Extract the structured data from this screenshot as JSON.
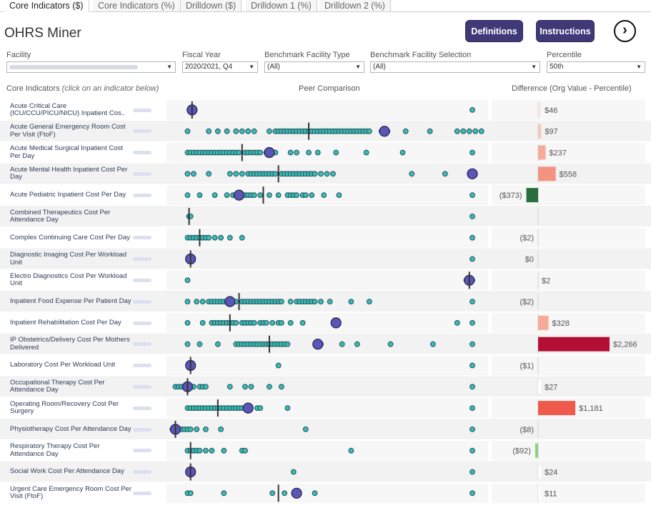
{
  "tabs": [
    {
      "label": "Core Indicators ($)",
      "active": true
    },
    {
      "label": "Core Indicators (%)",
      "active": false
    },
    {
      "label": "Drilldown ($)",
      "active": false
    },
    {
      "label": "Drilldown 1 (%)",
      "active": false
    },
    {
      "label": "Drilldown 2 (%)",
      "active": false
    }
  ],
  "header": {
    "title": "OHRS Miner",
    "definitions_label": "Definitions",
    "instructions_label": "Instructions",
    "next_icon": "chevron-right-circle-icon"
  },
  "filters": {
    "facility": {
      "label": "Facility",
      "value": ""
    },
    "fiscal_year": {
      "label": "Fiscal Year",
      "value": "2020/2021, Q4"
    },
    "benchmark_type": {
      "label": "Benchmark Facility Type",
      "value": "(All)"
    },
    "benchmark_selection": {
      "label": "Benchmark Facility Selection",
      "value": "(All)"
    },
    "percentile": {
      "label": "Percentile",
      "value": "50th"
    }
  },
  "columns": {
    "indicators": "Core Indicators",
    "indicators_hint": "(click on an indicator below)",
    "peer": "Peer Comparison",
    "difference": "Difference (Org Value - Percentile)"
  },
  "colors": {
    "dot_fill": "#3bbdb4",
    "dot_stroke": "#1d4f5a",
    "org_dot_fill": "#5b56b3",
    "org_dot_stroke": "#221e55",
    "band": "#f2f2f2",
    "median_line": "#333333"
  },
  "rows": [
    {
      "label": "Acute Critical Care (ICU/CCU/PICU/NICU) Inpatient Cos..",
      "org": 0.075,
      "median": 0.075,
      "peers": [
        0.07,
        0.075,
        0.08,
        1.0
      ],
      "diff": "$46",
      "diff_value": 46,
      "color": "#f3e9e2"
    },
    {
      "label": "Acute General Emergency Room Cost Per Visit (FtoF)",
      "org": 0.71,
      "median": 0.46,
      "peers": [
        0.06,
        0.13,
        0.16,
        0.19,
        0.22,
        0.24,
        0.26,
        0.28,
        0.33,
        0.35,
        0.36,
        0.37,
        0.38,
        0.39,
        0.4,
        0.41,
        0.42,
        0.43,
        0.44,
        0.45,
        0.46,
        0.47,
        0.48,
        0.49,
        0.5,
        0.51,
        0.52,
        0.53,
        0.54,
        0.55,
        0.56,
        0.57,
        0.58,
        0.59,
        0.6,
        0.61,
        0.62,
        0.63,
        0.64,
        0.65,
        0.66,
        0.7,
        0.72,
        0.78,
        0.86,
        0.95,
        0.97,
        0.99,
        1.01,
        1.03
      ],
      "diff": "$97",
      "diff_value": 97,
      "color": "#f1c9b7"
    },
    {
      "label": "Acute Medical Surgical Inpatient Cost Per Day",
      "org": 0.33,
      "median": 0.24,
      "peers": [
        0.06,
        0.07,
        0.08,
        0.09,
        0.1,
        0.11,
        0.12,
        0.13,
        0.14,
        0.15,
        0.16,
        0.17,
        0.18,
        0.19,
        0.2,
        0.21,
        0.22,
        0.23,
        0.25,
        0.26,
        0.27,
        0.28,
        0.29,
        0.3,
        0.32,
        0.35,
        0.4,
        0.42,
        0.46,
        0.49,
        0.55,
        0.65,
        0.77,
        1.0
      ],
      "diff": "$237",
      "diff_value": 237,
      "color": "#f6ab98"
    },
    {
      "label": "Acute Mental Health Inpatient Cost Per Day",
      "org": 1.0,
      "median": 0.36,
      "peers": [
        0.06,
        0.08,
        0.13,
        0.2,
        0.22,
        0.24,
        0.26,
        0.27,
        0.28,
        0.29,
        0.3,
        0.31,
        0.32,
        0.33,
        0.34,
        0.35,
        0.37,
        0.38,
        0.39,
        0.4,
        0.41,
        0.42,
        0.43,
        0.44,
        0.45,
        0.46,
        0.47,
        0.48,
        0.5,
        0.52,
        0.54,
        0.8,
        0.91
      ],
      "diff": "$558",
      "diff_value": 558,
      "color": "#f4937f"
    },
    {
      "label": "Acute Pediatric Inpatient Cost Per Day",
      "org": 0.23,
      "median": 0.31,
      "peers": [
        0.06,
        0.1,
        0.15,
        0.19,
        0.21,
        0.22,
        0.24,
        0.25,
        0.26,
        0.27,
        0.28,
        0.3,
        0.33,
        0.36,
        0.39,
        0.4,
        0.41,
        0.42,
        0.44,
        0.45,
        0.47,
        0.51,
        0.56,
        1.0
      ],
      "diff": "($373)",
      "diff_value": -373,
      "color": "#2a6e3e"
    },
    {
      "label": "Combined Therapeutics Cost Per Attendance Day",
      "org": null,
      "median": 0.065,
      "peers": [
        0.065,
        0.07,
        1.0
      ],
      "diff": "",
      "diff_value": 0,
      "color": "#ffffff"
    },
    {
      "label": "Complex Continuing Care Cost Per Day",
      "org": null,
      "median": 0.1,
      "peers": [
        0.06,
        0.07,
        0.08,
        0.09,
        0.1,
        0.11,
        0.12,
        0.13,
        0.15,
        0.17,
        0.2,
        0.24,
        1.0
      ],
      "diff": "($2)",
      "diff_value": -2,
      "color": "#ffffff"
    },
    {
      "label": "Diagnostic Imaging Cost Per Workload Unit",
      "org": 0.07,
      "median": 0.07,
      "peers": [
        0.07,
        1.0
      ],
      "diff": "$0",
      "diff_value": 0,
      "color": "#ffffff"
    },
    {
      "label": "Electro Diagnostics Cost Per Workload Unit",
      "org": 0.99,
      "median": 0.99,
      "peers": [
        0.06,
        0.98,
        0.99,
        1.0
      ],
      "diff": "$2",
      "diff_value": 2,
      "color": "#ffffff"
    },
    {
      "label": "Inpatient Food Expense Per Patient Day",
      "org": 0.2,
      "median": 0.23,
      "peers": [
        0.06,
        0.09,
        0.11,
        0.13,
        0.14,
        0.15,
        0.16,
        0.17,
        0.18,
        0.19,
        0.2,
        0.21,
        0.22,
        0.24,
        0.25,
        0.26,
        0.27,
        0.28,
        0.29,
        0.3,
        0.31,
        0.32,
        0.33,
        0.34,
        0.35,
        0.36,
        0.37,
        0.4,
        0.42,
        0.43,
        0.44,
        0.45,
        0.46,
        0.47,
        0.48,
        0.5,
        0.53,
        0.6,
        0.66,
        1.0
      ],
      "diff": "($2)",
      "diff_value": -2,
      "color": "#ffffff"
    },
    {
      "label": "Inpatient Rehabilitation Cost Per Day",
      "org": 0.55,
      "median": 0.2,
      "peers": [
        0.06,
        0.11,
        0.14,
        0.15,
        0.16,
        0.17,
        0.18,
        0.19,
        0.2,
        0.21,
        0.22,
        0.24,
        0.25,
        0.26,
        0.27,
        0.28,
        0.3,
        0.31,
        0.32,
        0.34,
        0.36,
        0.37,
        0.4,
        0.44,
        0.95,
        1.0
      ],
      "diff": "$328",
      "diff_value": 328,
      "color": "#f6ab98"
    },
    {
      "label": "IP Obstetrics/Delivery Cost Per Mothers Delivered",
      "org": 0.49,
      "median": 0.33,
      "peers": [
        0.06,
        0.1,
        0.16,
        0.22,
        0.23,
        0.24,
        0.25,
        0.26,
        0.27,
        0.28,
        0.29,
        0.3,
        0.31,
        0.32,
        0.33,
        0.34,
        0.35,
        0.36,
        0.37,
        0.38,
        0.39,
        0.5,
        0.57,
        0.62,
        0.73,
        0.87,
        1.0
      ],
      "diff": "$2,266",
      "diff_value": 2266,
      "color": "#b30f36"
    },
    {
      "label": "Laboratory Cost Per Workload Unit",
      "org": 0.07,
      "median": 0.07,
      "peers": [
        0.07,
        0.36,
        1.0
      ],
      "diff": "($1)",
      "diff_value": -1,
      "color": "#ffffff"
    },
    {
      "label": "Occupational Therapy Cost Per Attendance Day",
      "org": 0.06,
      "median": 0.06,
      "peers": [
        0.02,
        0.03,
        0.04,
        0.05,
        0.06,
        0.08,
        0.1,
        0.11,
        0.12,
        0.2,
        0.25,
        0.27,
        0.33,
        0.37,
        1.0
      ],
      "diff": "$27",
      "diff_value": 27,
      "color": "#ffffff"
    },
    {
      "label": "Operating Room/Recovery Cost Per Surgery",
      "org": 0.26,
      "median": 0.16,
      "peers": [
        0.06,
        0.07,
        0.08,
        0.09,
        0.1,
        0.11,
        0.12,
        0.13,
        0.14,
        0.15,
        0.16,
        0.17,
        0.18,
        0.19,
        0.2,
        0.21,
        0.22,
        0.23,
        0.24,
        0.25,
        0.29,
        0.3,
        0.39,
        1.0
      ],
      "diff": "$1,181",
      "diff_value": 1181,
      "color": "#f05a4c"
    },
    {
      "label": "Physiotherapy Cost Per Attendance Day",
      "org": 0.02,
      "median": 0.02,
      "peers": [
        0.01,
        0.02,
        0.03,
        0.04,
        0.05,
        0.06,
        0.07,
        0.09,
        0.12,
        0.17,
        0.45,
        1.0
      ],
      "diff": "($8)",
      "diff_value": -8,
      "color": "#ffffff"
    },
    {
      "label": "Respiratory Therapy Cost Per Attendance Day",
      "org": null,
      "median": 0.07,
      "peers": [
        0.06,
        0.07,
        0.08,
        0.09,
        0.1,
        0.12,
        0.14,
        0.18,
        0.24,
        0.25,
        0.6,
        1.0
      ],
      "diff": "($92)",
      "diff_value": -92,
      "color": "#8fd07e"
    },
    {
      "label": "Social Work Cost Per Attendance Day",
      "org": 0.07,
      "median": 0.07,
      "peers": [
        0.07,
        0.41,
        1.0
      ],
      "diff": "$24",
      "diff_value": 24,
      "color": "#ffffff"
    },
    {
      "label": "Urgent Care Emergency Room Cost Per Visit (FtoF)",
      "org": 0.42,
      "median": 0.36,
      "peers": [
        0.06,
        0.07,
        0.18,
        0.34,
        0.38,
        0.48,
        1.0
      ],
      "diff": "$11",
      "diff_value": 11,
      "color": "#ffffff"
    }
  ]
}
